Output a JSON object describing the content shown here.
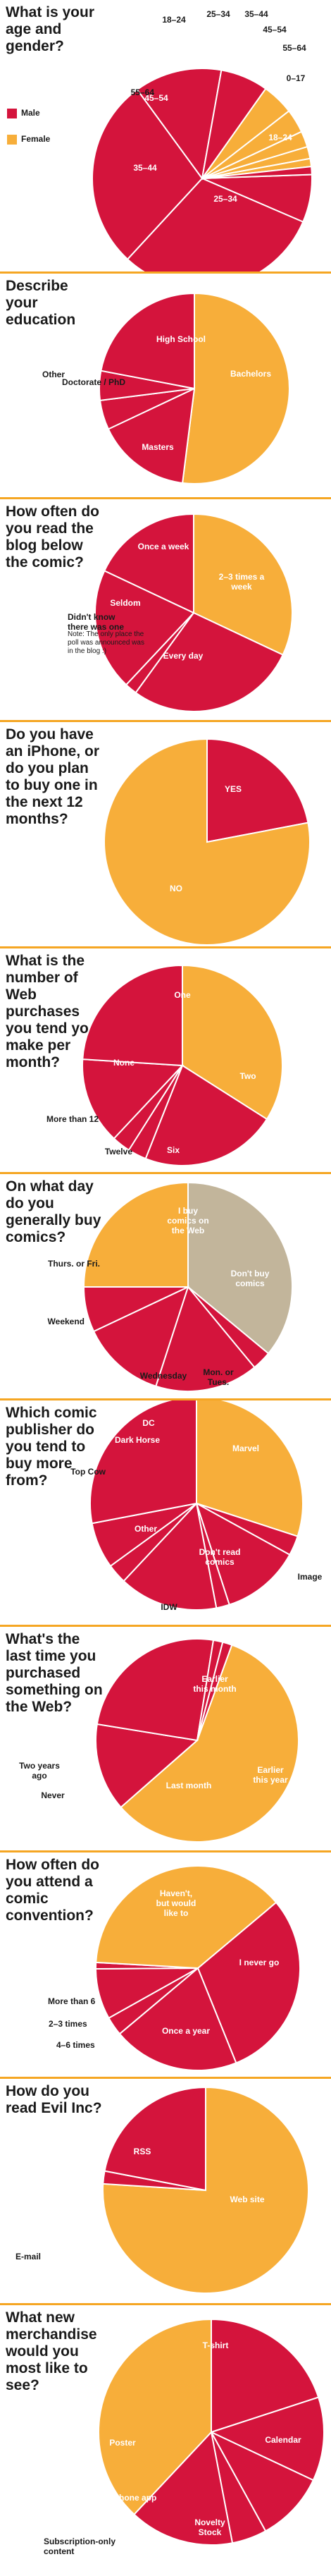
{
  "colors": {
    "male": "#d4143c",
    "female": "#f7ae3a",
    "red": "#d4143c",
    "orange": "#f7ae3a",
    "tan": "#c2b59b",
    "divider": "#f5a623"
  },
  "legend": {
    "male": "Male",
    "female": "Female"
  },
  "chart_data": [
    {
      "type": "pie",
      "title": "What is your age and gender?",
      "slices": [
        {
          "label": "18–24",
          "value": 6,
          "color": "red"
        },
        {
          "label": "25–34",
          "value": 26,
          "color": "red"
        },
        {
          "label": "35–44",
          "value": 24,
          "color": "red"
        },
        {
          "label": "45–54",
          "value": 11,
          "color": "red"
        },
        {
          "label": "55–64",
          "value": 6,
          "color": "red"
        },
        {
          "label": "18–24",
          "value": 4,
          "color": "orange"
        },
        {
          "label": "25–34",
          "value": 3,
          "color": "orange"
        },
        {
          "label": "35–44",
          "value": 2,
          "color": "orange"
        },
        {
          "label": "45–54",
          "value": 1.5,
          "color": "orange"
        },
        {
          "label": "55–64",
          "value": 1,
          "color": "orange"
        },
        {
          "label": "0–17",
          "value": 1,
          "color": "red"
        }
      ]
    },
    {
      "type": "pie",
      "title": "Describe your education",
      "slices": [
        {
          "label": "Bachelors",
          "value": 52,
          "color": "orange"
        },
        {
          "label": "Masters",
          "value": 16,
          "color": "red"
        },
        {
          "label": "Doctorate / PhD",
          "value": 5,
          "color": "red"
        },
        {
          "label": "Other",
          "value": 5,
          "color": "red"
        },
        {
          "label": "High School",
          "value": 22,
          "color": "red"
        }
      ]
    },
    {
      "type": "pie",
      "title": "How often do you read the blog below the comic?",
      "note": "Note: The only place the poll was announced was in the blog :)",
      "slices": [
        {
          "label": "2–3 times a week",
          "value": 32,
          "color": "orange"
        },
        {
          "label": "Every day",
          "value": 28,
          "color": "red"
        },
        {
          "label": "Didn't know there was one",
          "value": 2,
          "color": "red"
        },
        {
          "label": "Seldom",
          "value": 20,
          "color": "red"
        },
        {
          "label": "Once a week",
          "value": 18,
          "color": "red"
        }
      ]
    },
    {
      "type": "pie",
      "title": "Do you have an iPhone, or do you plan to buy one in the next 12 months?",
      "slices": [
        {
          "label": "YES",
          "value": 22,
          "color": "red"
        },
        {
          "label": "NO",
          "value": 78,
          "color": "orange"
        }
      ]
    },
    {
      "type": "pie",
      "title": "What is the number of Web purchases you tend yo make per month?",
      "slices": [
        {
          "label": "Two",
          "value": 34,
          "color": "orange"
        },
        {
          "label": "Six",
          "value": 22,
          "color": "red"
        },
        {
          "label": "Twelve",
          "value": 3,
          "color": "red"
        },
        {
          "label": "More than 12",
          "value": 3,
          "color": "red"
        },
        {
          "label": "None",
          "value": 14,
          "color": "red"
        },
        {
          "label": "One",
          "value": 24,
          "color": "red"
        }
      ]
    },
    {
      "type": "pie",
      "title": "On what day do you generally buy comics?",
      "slices": [
        {
          "label": "Don't buy comics",
          "value": 36,
          "color": "tan"
        },
        {
          "label": "Mon. or Tues.",
          "value": 3,
          "color": "red"
        },
        {
          "label": "Wednesday",
          "value": 16,
          "color": "red"
        },
        {
          "label": "Weekend",
          "value": 13,
          "color": "red"
        },
        {
          "label": "Thurs. or Fri.",
          "value": 7,
          "color": "red"
        },
        {
          "label": "I buy comics on the Web",
          "value": 25,
          "color": "orange"
        }
      ]
    },
    {
      "type": "pie",
      "title": "Which comic publisher do you tend to buy more from?",
      "slices": [
        {
          "label": "Marvel",
          "value": 30,
          "color": "orange"
        },
        {
          "label": "Image",
          "value": 3,
          "color": "red"
        },
        {
          "label": "Don't read comics",
          "value": 12,
          "color": "red"
        },
        {
          "label": "IDW",
          "value": 2,
          "color": "red"
        },
        {
          "label": "Other",
          "value": 15,
          "color": "red"
        },
        {
          "label": "Top Cow",
          "value": 3,
          "color": "red"
        },
        {
          "label": "Dark Horse",
          "value": 7,
          "color": "red"
        },
        {
          "label": "DC",
          "value": 28,
          "color": "red"
        }
      ]
    },
    {
      "type": "pie",
      "title": "What's the last time you purchased something on the Web?",
      "slices": [
        {
          "label": "Earlier this month",
          "value": 58,
          "color": "orange"
        },
        {
          "label": "Earlier this year",
          "value": 14,
          "color": "red"
        },
        {
          "label": "Last month",
          "value": 25,
          "color": "red"
        },
        {
          "label": "Never",
          "value": 1.5,
          "color": "red"
        },
        {
          "label": "Two years ago",
          "value": 1.5,
          "color": "red"
        }
      ]
    },
    {
      "type": "pie",
      "title": "How often do you attend a comic convention?",
      "slices": [
        {
          "label": "I never go",
          "value": 30,
          "color": "red"
        },
        {
          "label": "Once a year",
          "value": 20,
          "color": "red"
        },
        {
          "label": "4–6 times",
          "value": 3,
          "color": "red"
        },
        {
          "label": "2–3 times",
          "value": 8,
          "color": "red"
        },
        {
          "label": "More than 6",
          "value": 1,
          "color": "red"
        },
        {
          "label": "Haven't, but would like to",
          "value": 38,
          "color": "orange"
        }
      ]
    },
    {
      "type": "pie",
      "title": "How do you read Evil Inc?",
      "slices": [
        {
          "label": "Web site",
          "value": 76,
          "color": "orange"
        },
        {
          "label": "E-mail",
          "value": 2,
          "color": "red"
        },
        {
          "label": "RSS",
          "value": 22,
          "color": "red"
        }
      ]
    },
    {
      "type": "pie",
      "title": "What new merchandise would you most like to see?",
      "slices": [
        {
          "label": "Calendar",
          "value": 20,
          "color": "red"
        },
        {
          "label": "Novelty Stock",
          "value": 12,
          "color": "red"
        },
        {
          "label": "iPhone app",
          "value": 10,
          "color": "red"
        },
        {
          "label": "Subscription-only content",
          "value": 5,
          "color": "red"
        },
        {
          "label": "Poster",
          "value": 15,
          "color": "red"
        },
        {
          "label": "T-shirt",
          "value": 38,
          "color": "orange"
        }
      ]
    }
  ]
}
